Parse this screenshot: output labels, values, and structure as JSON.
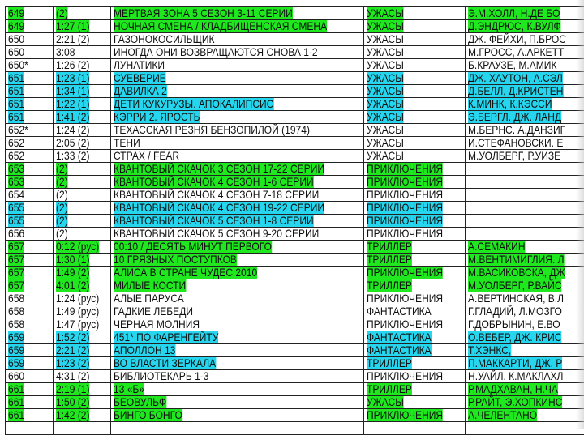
{
  "colors": {
    "green": "#1fe81f",
    "cyan": "#26d6ee"
  },
  "rows": [
    {
      "num": "649",
      "dur": "(2)",
      "title": "МЕРТВАЯ ЗОНА   5 СЕЗОН  3-11 СЕРИИ",
      "genre": "УЖАСЫ",
      "cast": "Э.М.ХОЛЛ, Н.ДЕ БО",
      "hl": "green"
    },
    {
      "num": "649",
      "dur": "1:27 (1)",
      "title": "НОЧНАЯ СМЕНА / КЛАДБИЩЕНСКАЯ СМЕНА",
      "genre": "УЖАСЫ",
      "cast": "Д.ЭНДРЮС, К.ВУЛФ",
      "hl": "green"
    },
    {
      "num": "650",
      "dur": "2:21 (2)",
      "title": "ГАЗОНОКОСИЛЬЩИК",
      "genre": "УЖАСЫ",
      "cast": "ДЖ. ФЕЙХИ, П.БРОС",
      "hl": ""
    },
    {
      "num": "650",
      "dur": "3:08",
      "title": "ИНОГДА  ОНИ ВОЗВРАЩАЮТСЯ  СНОВА  1-2",
      "genre": "УЖАСЫ",
      "cast": "М.ГРОСС, А.АРКЕТТ",
      "hl": ""
    },
    {
      "num": "650*",
      "dur": "1:26 (2)",
      "title": "ЛУНАТИКИ",
      "genre": "УЖАСЫ",
      "cast": "Б.КРАУЗЕ, М.АМИК",
      "hl": ""
    },
    {
      "num": "651",
      "dur": "1:23 (1)",
      "title": "СУЕВЕРИЕ",
      "genre": "УЖАСЫ",
      "cast": "ДЖ. ХАУТОН, А.СЭЛ",
      "hl": "cyan"
    },
    {
      "num": "651",
      "dur": "1:34 (1)",
      "title": "ДАВИЛКА 2",
      "genre": "УЖАСЫ",
      "cast": "Д.БЕЛЛ, Д.КРИСТЕН",
      "hl": "cyan"
    },
    {
      "num": "651",
      "dur": "1:22 (1)",
      "title": "ДЕТИ КУКУРУЗЫ. АПОКАЛИПСИС",
      "genre": "УЖАСЫ",
      "cast": "К.МИНК, К.КЭССИ",
      "hl": "cyan"
    },
    {
      "num": "651",
      "dur": "1:41 (2)",
      "title": "КЭРРИ 2. ЯРОСТЬ",
      "genre": "УЖАСЫ",
      "cast": "Э.БЕРГЛ. ДЖ. ЛАНД",
      "hl": "cyan"
    },
    {
      "num": "652*",
      "dur": "1:24 (2)",
      "title": "ТЕХАССКАЯ РЕЗНЯ БЕНЗОПИЛОЙ (1974)",
      "genre": "УЖАСЫ",
      "cast": "М.БЕРНС. А.ДАНЗИГ",
      "hl": ""
    },
    {
      "num": "652",
      "dur": "2:05 (2)",
      "title": "ТЕНИ",
      "genre": "УЖАСЫ",
      "cast": "И.СТЕФАНОВСКИ. Е",
      "hl": ""
    },
    {
      "num": "652",
      "dur": "1:33 (2)",
      "title": "СТРАХ / FEAR",
      "genre": "УЖАСЫ",
      "cast": "М.УОЛБЕРГ, Р.УИЗЕ",
      "hl": ""
    },
    {
      "num": "653",
      "dur": "(2)",
      "title": "КВАНТОВЫЙ СКАЧОК  3 СЕЗОН  17-22 СЕРИИ",
      "genre": "ПРИКЛЮЧЕНИЯ",
      "cast": "",
      "hl": "green"
    },
    {
      "num": "653",
      "dur": "(2)",
      "title": "КВАНТОВЫЙ СКАЧОК  4 СЕЗОН  1-6 СЕРИИ",
      "genre": "ПРИКЛЮЧЕНИЯ",
      "cast": "",
      "hl": "green"
    },
    {
      "num": "654",
      "dur": "(2)",
      "title": "КВАНТОВЫЙ СКАЧОК  4 СЕЗОН  7-18 СЕРИИ",
      "genre": "ПРИКЛЮЧЕНИЯ",
      "cast": "",
      "hl": ""
    },
    {
      "num": "655",
      "dur": "(2)",
      "title": "КВАНТОВЫЙ СКАЧОК  4 СЕЗОН  19-22 СЕРИИ",
      "genre": "ПРИКЛЮЧЕНИЯ",
      "cast": "",
      "hl": "cyan"
    },
    {
      "num": "655",
      "dur": "(2)",
      "title": "КВАНТОВЫЙ СКАЧОК  5 СЕЗОН  1-8 СЕРИИ",
      "genre": "ПРИКЛЮЧЕНИЯ",
      "cast": "",
      "hl": "cyan"
    },
    {
      "num": "656",
      "dur": "(2)",
      "title": "КВАНТОВЫЙ СКАЧОК  5 СЕЗОН  9-20 СЕРИИ",
      "genre": "ПРИКЛЮЧЕНИЯ",
      "cast": "",
      "hl": ""
    },
    {
      "num": "657",
      "dur": "0:12 (рус)",
      "title": "00:10  / ДЕСЯТЬ  МИНУТ  ПЕРВОГО",
      "genre": "ТРИЛЛЕР",
      "cast": "А.СЕМАКИН",
      "hl": "green"
    },
    {
      "num": "657",
      "dur": "1:30 (1)",
      "title": "10 ГРЯЗНЫХ ПОСТУПКОВ",
      "genre": "ТРИЛЛЕР",
      "cast": "М.ВЕНТИМИГЛИЯ. Л",
      "hl": "green"
    },
    {
      "num": "657",
      "dur": "1:49 (2)",
      "title": "АЛИСА В СТРАНЕ  ЧУДЕС 2010",
      "genre": "ПРИКЛЮЧЕНИЯ",
      "cast": "М.ВАСИКОВСКА, ДЖ",
      "hl": "green"
    },
    {
      "num": "657",
      "dur": "4:01 (2)",
      "title": "МИЛЫЕ КОСТИ",
      "genre": "ТРИЛЛЕР",
      "cast": "М.УОЛБЕРГ, Р.ВАЙС",
      "hl": "green"
    },
    {
      "num": "658",
      "dur": "1:24 (рус)",
      "title": "АЛЫЕ ПАРУСА",
      "genre": "ПРИКЛЮЧЕНИЯ",
      "cast": "А.ВЕРТИНСКАЯ, В.Л",
      "hl": ""
    },
    {
      "num": "658",
      "dur": "1:49 (рус)",
      "title": "ГАДКИЕ ЛЕБЕДИ",
      "genre": "ФАНТАСТИКА",
      "cast": "Г.ГЛАДИЙ, Л.МОЗГО",
      "hl": ""
    },
    {
      "num": "658",
      "dur": "1:47 (рус)",
      "title": "ЧЕРНАЯ МОЛНИЯ",
      "genre": "ПРИКЛЮЧЕНИЯ",
      "cast": "Г.ДОБРЫНИН, Е.ВО",
      "hl": ""
    },
    {
      "num": "659",
      "dur": "1:52 (2)",
      "title": "451* ПО ФАРЕНГЕЙТУ",
      "genre": "ФАНТАСТИКА",
      "cast": "О.ВЕБЕР, ДЖ. КРИС",
      "hl": "cyan"
    },
    {
      "num": "659",
      "dur": "2:21 (2)",
      "title": "АПОЛЛОН 13",
      "genre": "ФАНТАСТИКА",
      "cast": "Т.ХЭНКС,",
      "hl": "cyan"
    },
    {
      "num": "659",
      "dur": "1:23 (2)",
      "title": "ВО ВЛАСТИ  ЗЕРКАЛА",
      "genre": "ТРИЛЛЕР",
      "cast": "П.МАККАРТИ, ДЖ. Р",
      "hl": "cyan"
    },
    {
      "num": "660",
      "dur": "4:31 (2)",
      "title": "БИБЛИОТЕКАРЬ 1-3",
      "genre": "ПРИКЛЮЧЕНИЯ",
      "cast": "Н.УАЙЛ. К.МАКЛАХЛ",
      "hl": ""
    },
    {
      "num": "661",
      "dur": "2:19 (1)",
      "title": "13 «Б»",
      "genre": "ТРИЛЛЕР",
      "cast": "Р.МАДХАВАН, Н.ЧА",
      "hl": "green"
    },
    {
      "num": "661",
      "dur": "1:50 (2)",
      "title": "БЕОВУЛЬФ",
      "genre": "УЖАСЫ",
      "cast": "Р.РАЙТ, Э.ХОПКИНС",
      "hl": "green"
    },
    {
      "num": "661",
      "dur": "1:42 (2)",
      "title": "БИНГО БОНГО",
      "genre": "ПРИКЛЮЧЕНИЯ",
      "cast": "А.ЧЕЛЕНТАНО",
      "hl": "green"
    },
    {
      "num": "",
      "dur": "",
      "title": "",
      "genre": "",
      "cast": "",
      "hl": ""
    }
  ]
}
